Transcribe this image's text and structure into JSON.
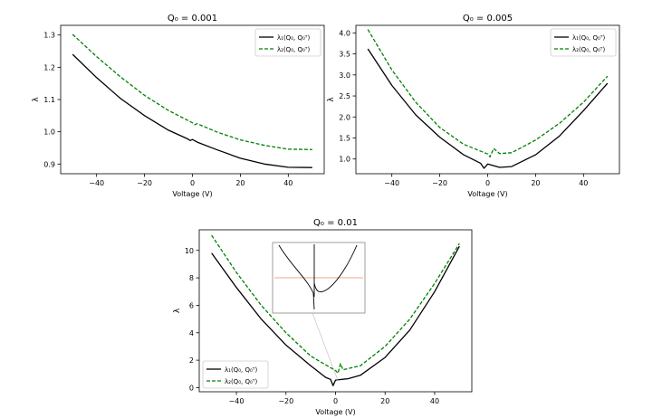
{
  "chart_data": [
    {
      "type": "line",
      "title": "Q₀ = 0.001",
      "xlabel": "Voltage (V)",
      "ylabel": "λ",
      "xlim": [
        -55,
        55
      ],
      "ylim": [
        0.87,
        1.33
      ],
      "xticks": [
        -40,
        -20,
        0,
        20,
        40
      ],
      "xtick_labels": [
        "−40",
        "−20",
        "0",
        "20",
        "40"
      ],
      "yticks": [
        0.9,
        1.0,
        1.1,
        1.2,
        1.3
      ],
      "ytick_labels": [
        "0.9",
        "1.0",
        "1.1",
        "1.2",
        "1.3"
      ],
      "legend_position": "top-right",
      "series": [
        {
          "name": "λ1(Q0, Q0T)",
          "legend_label": "λ₁(Q₀, Q₀ᵀ)",
          "color": "#000000",
          "style": "solid",
          "points": [
            [
              -50,
              1.24
            ],
            [
              -40,
              1.168
            ],
            [
              -30,
              1.103
            ],
            [
              -20,
              1.05
            ],
            [
              -10,
              1.005
            ],
            [
              -2,
              0.978
            ],
            [
              -1,
              0.973
            ],
            [
              0,
              0.976
            ],
            [
              2,
              0.968
            ],
            [
              10,
              0.945
            ],
            [
              20,
              0.918
            ],
            [
              30,
              0.9
            ],
            [
              40,
              0.89
            ],
            [
              50,
              0.889
            ]
          ]
        },
        {
          "name": "λ2(Q0, Q0T)",
          "legend_label": "λ₂(Q₀, Q₀ᵀ)",
          "color": "#008000",
          "style": "dashed",
          "points": [
            [
              -50,
              1.302
            ],
            [
              -40,
              1.233
            ],
            [
              -30,
              1.17
            ],
            [
              -20,
              1.113
            ],
            [
              -10,
              1.066
            ],
            [
              0,
              1.028
            ],
            [
              1,
              1.022
            ],
            [
              2,
              1.025
            ],
            [
              10,
              1.0
            ],
            [
              20,
              0.975
            ],
            [
              30,
              0.958
            ],
            [
              40,
              0.946
            ],
            [
              50,
              0.945
            ]
          ]
        }
      ]
    },
    {
      "type": "line",
      "title": "Q₀ = 0.005",
      "xlabel": "Voltage (V)",
      "ylabel": "λ",
      "xlim": [
        -55,
        55
      ],
      "ylim": [
        0.65,
        4.18
      ],
      "xticks": [
        -40,
        -20,
        0,
        20,
        40
      ],
      "xtick_labels": [
        "−40",
        "−20",
        "0",
        "20",
        "40"
      ],
      "yticks": [
        1.0,
        1.5,
        2.0,
        2.5,
        3.0,
        3.5,
        4.0
      ],
      "ytick_labels": [
        "1.0",
        "1.5",
        "2.0",
        "2.5",
        "3.0",
        "3.5",
        "4.0"
      ],
      "legend_position": "top-right",
      "series": [
        {
          "name": "λ1(Q0, Q0T)",
          "legend_label": "λ₁(Q₀, Q₀ᵀ)",
          "color": "#000000",
          "style": "solid",
          "points": [
            [
              -50,
              3.62
            ],
            [
              -40,
              2.75
            ],
            [
              -30,
              2.05
            ],
            [
              -20,
              1.52
            ],
            [
              -10,
              1.1
            ],
            [
              -3,
              0.9
            ],
            [
              -1.5,
              0.78
            ],
            [
              0,
              0.88
            ],
            [
              5,
              0.8
            ],
            [
              10,
              0.82
            ],
            [
              20,
              1.1
            ],
            [
              30,
              1.55
            ],
            [
              40,
              2.15
            ],
            [
              50,
              2.8
            ]
          ]
        },
        {
          "name": "λ2(Q0, Q0T)",
          "legend_label": "λ₂(Q₀, Q₀ᵀ)",
          "color": "#008000",
          "style": "dashed",
          "points": [
            [
              -50,
              4.08
            ],
            [
              -40,
              3.12
            ],
            [
              -30,
              2.35
            ],
            [
              -20,
              1.75
            ],
            [
              -10,
              1.35
            ],
            [
              0,
              1.12
            ],
            [
              1,
              1.05
            ],
            [
              2.5,
              1.25
            ],
            [
              5,
              1.13
            ],
            [
              10,
              1.15
            ],
            [
              20,
              1.45
            ],
            [
              30,
              1.85
            ],
            [
              40,
              2.35
            ],
            [
              50,
              2.97
            ]
          ]
        }
      ]
    },
    {
      "type": "line",
      "title": "Q₀ = 0.01",
      "xlabel": "Voltage (V)",
      "ylabel": "λ",
      "xlim": [
        -55,
        55
      ],
      "ylim": [
        -0.3,
        11.5
      ],
      "xticks": [
        -40,
        -20,
        0,
        20,
        40
      ],
      "xtick_labels": [
        "−40",
        "−20",
        "0",
        "20",
        "40"
      ],
      "yticks": [
        0,
        2,
        4,
        6,
        8,
        10
      ],
      "ytick_labels": [
        "0",
        "2",
        "4",
        "6",
        "8",
        "10"
      ],
      "legend_position": "lower-left",
      "has_inset": true,
      "series": [
        {
          "name": "λ1(Q0, Q0T)",
          "legend_label": "λ₁(Q₀, Q₀ᵀ)",
          "color": "#000000",
          "style": "solid",
          "points": [
            [
              -50,
              9.8
            ],
            [
              -40,
              7.3
            ],
            [
              -30,
              5.0
            ],
            [
              -20,
              3.1
            ],
            [
              -10,
              1.6
            ],
            [
              -4,
              0.75
            ],
            [
              -2,
              0.6
            ],
            [
              -1,
              0.15
            ],
            [
              0,
              0.55
            ],
            [
              5,
              0.65
            ],
            [
              10,
              0.9
            ],
            [
              20,
              2.2
            ],
            [
              30,
              4.2
            ],
            [
              40,
              7.0
            ],
            [
              50,
              10.3
            ]
          ]
        },
        {
          "name": "λ2(Q0, Q0T)",
          "legend_label": "λ₂(Q₀, Q₀ᵀ)",
          "color": "#008000",
          "style": "dashed",
          "points": [
            [
              -50,
              11.1
            ],
            [
              -40,
              8.4
            ],
            [
              -30,
              6.0
            ],
            [
              -20,
              4.0
            ],
            [
              -10,
              2.3
            ],
            [
              0,
              1.25
            ],
            [
              1,
              1.05
            ],
            [
              2,
              1.75
            ],
            [
              3,
              1.3
            ],
            [
              10,
              1.6
            ],
            [
              20,
              3.0
            ],
            [
              30,
              5.0
            ],
            [
              40,
              7.6
            ],
            [
              50,
              10.5
            ]
          ]
        }
      ]
    }
  ]
}
